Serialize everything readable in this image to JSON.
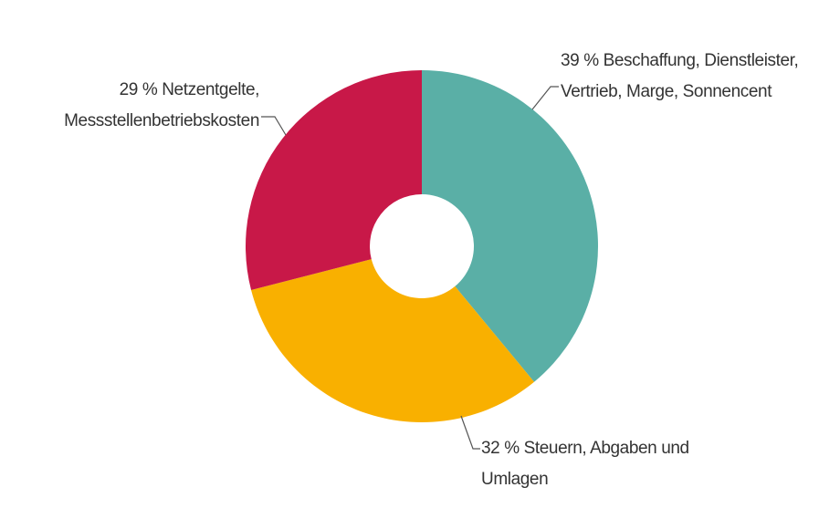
{
  "chart_data": {
    "type": "donut",
    "categories": [
      "Beschaffung, Dienstleister, Vertrieb, Marge, Sonnencent",
      "Steuern, Abgaben und Umlagen",
      "Netzentgelte, Messstellenbetriebskosten"
    ],
    "values": [
      39,
      32,
      29
    ],
    "value_labels": [
      "39 %",
      "32 %",
      "29 %"
    ],
    "colors": [
      "#5aafa6",
      "#f9b000",
      "#c81848"
    ]
  }
}
